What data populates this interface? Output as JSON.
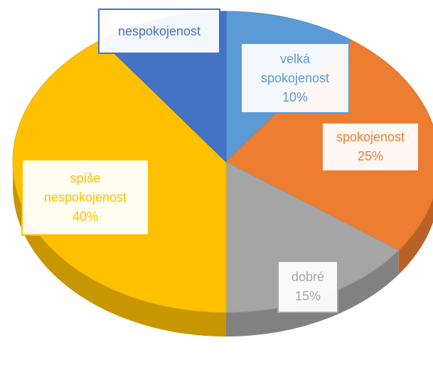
{
  "chart_data": {
    "type": "pie",
    "three_d": true,
    "categories": [
      "velká spokojenost",
      "spokojenost",
      "dobré",
      "spíše nespokojenost",
      "nespokojenost"
    ],
    "values": [
      10,
      25,
      15,
      40,
      10
    ],
    "value_labels": [
      "10%",
      "25%",
      "15%",
      "40%",
      null
    ],
    "colors": [
      "#5b9bd5",
      "#ed7d31",
      "#a5a5a5",
      "#ffc000",
      "#4472c4"
    ],
    "start_angle": 0,
    "direction": "clockwise"
  }
}
